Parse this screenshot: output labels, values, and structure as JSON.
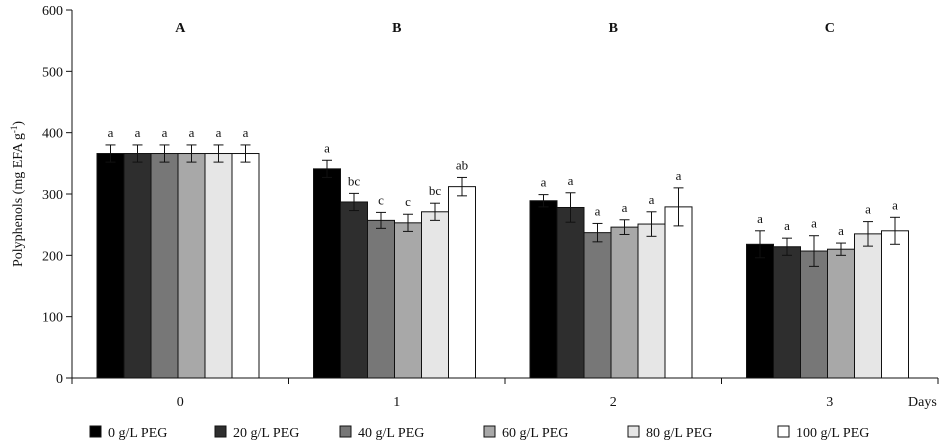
{
  "chart_data": {
    "type": "bar",
    "title": "",
    "xlabel": "Days",
    "ylabel_main": "Polyphenols (mg EFA g",
    "ylabel_sup": "-1",
    "ylabel_end": ")",
    "ylim": [
      0,
      600
    ],
    "yticks": [
      "0",
      "100",
      "200",
      "300",
      "400",
      "500",
      "600"
    ],
    "categories": [
      "0",
      "1",
      "2",
      "3"
    ],
    "group_letters": [
      "A",
      "B",
      "B",
      "C"
    ],
    "legend_position": "bottom",
    "grid": false,
    "series": [
      {
        "name": "0 g/L PEG",
        "color": "#000000",
        "values": [
          366,
          341,
          289,
          218
        ],
        "errors": [
          14,
          14,
          10,
          22
        ],
        "letters": [
          "a",
          "a",
          "a",
          "a"
        ]
      },
      {
        "name": "20 g/L PEG",
        "color": "#2e2e2e",
        "values": [
          366,
          287,
          278,
          214
        ],
        "errors": [
          14,
          14,
          24,
          14
        ],
        "letters": [
          "a",
          "bc",
          "a",
          "a"
        ]
      },
      {
        "name": "40 g/L PEG",
        "color": "#777777",
        "values": [
          366,
          257,
          237,
          207
        ],
        "errors": [
          14,
          13,
          15,
          25
        ],
        "letters": [
          "a",
          "c",
          "a",
          "a"
        ]
      },
      {
        "name": "60 g/L PEG",
        "color": "#a8a8a8",
        "values": [
          366,
          253,
          246,
          210
        ],
        "errors": [
          14,
          14,
          12,
          10
        ],
        "letters": [
          "a",
          "c",
          "a",
          "a"
        ]
      },
      {
        "name": "80 g/L PEG",
        "color": "#e6e6e6",
        "values": [
          366,
          271,
          251,
          235
        ],
        "errors": [
          14,
          14,
          20,
          20
        ],
        "letters": [
          "a",
          "bc",
          "a",
          "a"
        ]
      },
      {
        "name": "100 g/L PEG",
        "color": "#ffffff",
        "values": [
          366,
          312,
          279,
          240
        ],
        "errors": [
          14,
          15,
          31,
          22
        ],
        "letters": [
          "a",
          "ab",
          "a",
          "a"
        ]
      }
    ]
  }
}
